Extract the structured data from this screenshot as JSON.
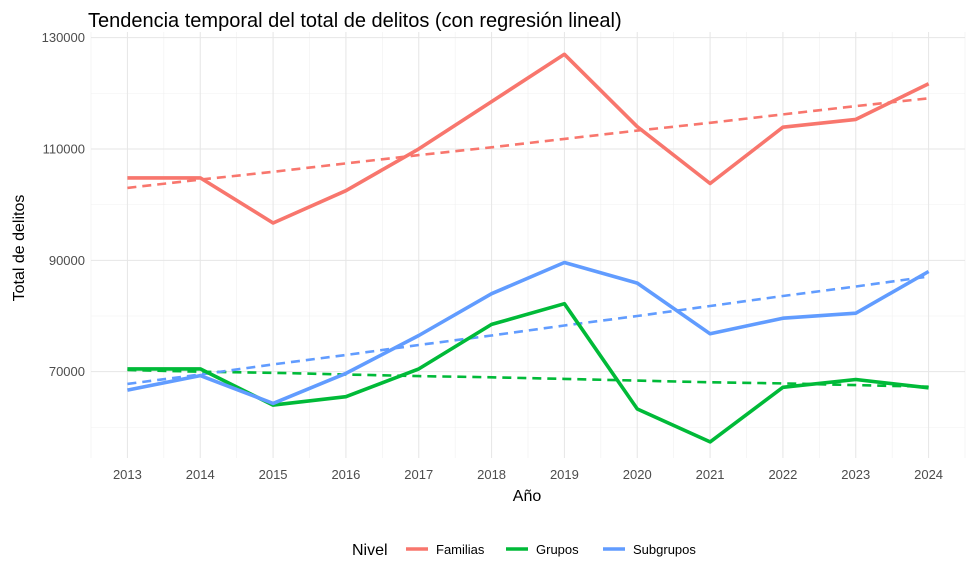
{
  "chart_data": {
    "type": "line",
    "title": "Tendencia temporal del total de delitos (con regresión lineal)",
    "xlabel": "Año",
    "ylabel": "Total de delitos",
    "x": [
      2013,
      2014,
      2015,
      2016,
      2017,
      2018,
      2019,
      2020,
      2021,
      2022,
      2023,
      2024
    ],
    "xlim": [
      2012.5,
      2024.5
    ],
    "ylim": [
      54500,
      131000
    ],
    "yticks": [
      70000,
      90000,
      110000,
      130000
    ],
    "ytick_labels": [
      "70000",
      "90000",
      "110000",
      "130000"
    ],
    "xtick_labels": [
      "2013",
      "2014",
      "2015",
      "2016",
      "2017",
      "2018",
      "2019",
      "2020",
      "2021",
      "2022",
      "2023",
      "2024"
    ],
    "grid": true,
    "legend": {
      "title": "Nivel",
      "position": "bottom"
    },
    "series": [
      {
        "name": "Familias",
        "color": "#F8766D",
        "values": [
          104800,
          104800,
          96700,
          102500,
          110000,
          118500,
          127000,
          114000,
          103800,
          113900,
          115300,
          121700
        ],
        "trend": [
          103000,
          104500,
          105900,
          107400,
          108900,
          110300,
          111800,
          113300,
          114700,
          116200,
          117700,
          119100
        ]
      },
      {
        "name": "Grupos",
        "color": "#00BA38",
        "values": [
          70500,
          70500,
          64000,
          65500,
          70500,
          78500,
          82200,
          63300,
          57400,
          67200,
          68600,
          67100
        ],
        "trend": [
          70300,
          70000,
          69800,
          69500,
          69200,
          69000,
          68700,
          68400,
          68100,
          67900,
          67600,
          67300
        ]
      },
      {
        "name": "Subgrupos",
        "color": "#619CFF",
        "values": [
          66700,
          69300,
          64300,
          69700,
          76500,
          84000,
          89600,
          85900,
          76800,
          79600,
          80500,
          88000
        ],
        "trend": [
          67800,
          69500,
          71300,
          73000,
          74800,
          76500,
          78300,
          80000,
          81800,
          83600,
          85300,
          87100
        ]
      }
    ]
  }
}
